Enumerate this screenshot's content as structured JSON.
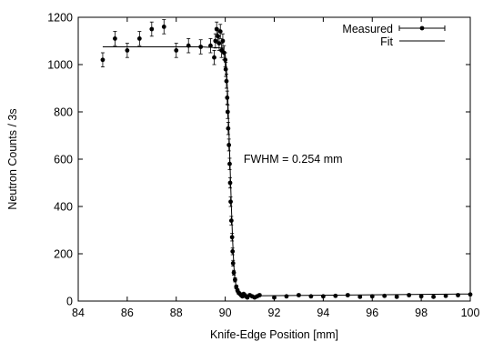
{
  "chart_data": {
    "type": "scatter",
    "xlabel": "Knife-Edge Position [mm]",
    "ylabel": "Neutron Counts / 3s",
    "xlim": [
      84,
      100
    ],
    "ylim": [
      0,
      1200
    ],
    "xticks": [
      84,
      86,
      88,
      90,
      92,
      94,
      96,
      98,
      100
    ],
    "yticks": [
      0,
      200,
      400,
      600,
      800,
      1000,
      1200
    ],
    "grid": false,
    "legend_position": "top-right",
    "annotation": "FWHM = 0.254 mm",
    "series": [
      {
        "name": "Measured",
        "style": "points-with-errorbars",
        "x": [
          85.0,
          85.5,
          86.0,
          86.5,
          87.0,
          87.5,
          88.0,
          88.5,
          89.0,
          89.4,
          89.55,
          89.6,
          89.65,
          89.7,
          89.75,
          89.8,
          89.85,
          89.9,
          89.95,
          90.0,
          90.02,
          90.05,
          90.08,
          90.1,
          90.12,
          90.15,
          90.18,
          90.2,
          90.22,
          90.25,
          90.28,
          90.3,
          90.32,
          90.35,
          90.4,
          90.45,
          90.5,
          90.55,
          90.6,
          90.65,
          90.7,
          90.75,
          90.8,
          90.85,
          90.9,
          91.0,
          91.1,
          91.2,
          91.3,
          91.4,
          92.0,
          92.5,
          93.0,
          93.5,
          94.0,
          94.5,
          95.0,
          95.5,
          96.0,
          96.5,
          97.0,
          97.5,
          98.0,
          98.5,
          99.0,
          99.5,
          100.0
        ],
        "y": [
          1020,
          1110,
          1060,
          1110,
          1150,
          1160,
          1060,
          1080,
          1075,
          1080,
          1030,
          1100,
          1150,
          1120,
          1090,
          1140,
          1060,
          1100,
          1050,
          1020,
          980,
          930,
          860,
          800,
          730,
          660,
          580,
          500,
          420,
          340,
          270,
          210,
          160,
          120,
          90,
          60,
          45,
          35,
          30,
          25,
          20,
          30,
          25,
          20,
          15,
          25,
          20,
          15,
          20,
          25,
          15,
          20,
          25,
          20,
          20,
          22,
          25,
          18,
          20,
          22,
          18,
          25,
          20,
          18,
          22,
          25,
          28
        ],
        "err": [
          30,
          30,
          30,
          30,
          30,
          30,
          30,
          30,
          30,
          30,
          30,
          30,
          30,
          30,
          30,
          30,
          30,
          30,
          30,
          30,
          30,
          30,
          28,
          28,
          26,
          25,
          24,
          22,
          20,
          18,
          16,
          14,
          12,
          10,
          9,
          8,
          7,
          6,
          5,
          5,
          5,
          5,
          5,
          5,
          5,
          5,
          5,
          5,
          5,
          5,
          5,
          5,
          5,
          5,
          5,
          5,
          5,
          5,
          5,
          5,
          5,
          5,
          5,
          5,
          5,
          5,
          5
        ]
      },
      {
        "name": "Fit",
        "style": "line",
        "x": [
          85.0,
          89.0,
          89.9,
          90.0,
          90.05,
          90.1,
          90.15,
          90.2,
          90.25,
          90.3,
          90.35,
          90.4,
          90.5,
          90.7,
          91.0,
          100.0
        ],
        "y": [
          1075,
          1075,
          1070,
          1040,
          980,
          870,
          720,
          560,
          400,
          260,
          150,
          85,
          45,
          25,
          22,
          30
        ]
      }
    ]
  }
}
